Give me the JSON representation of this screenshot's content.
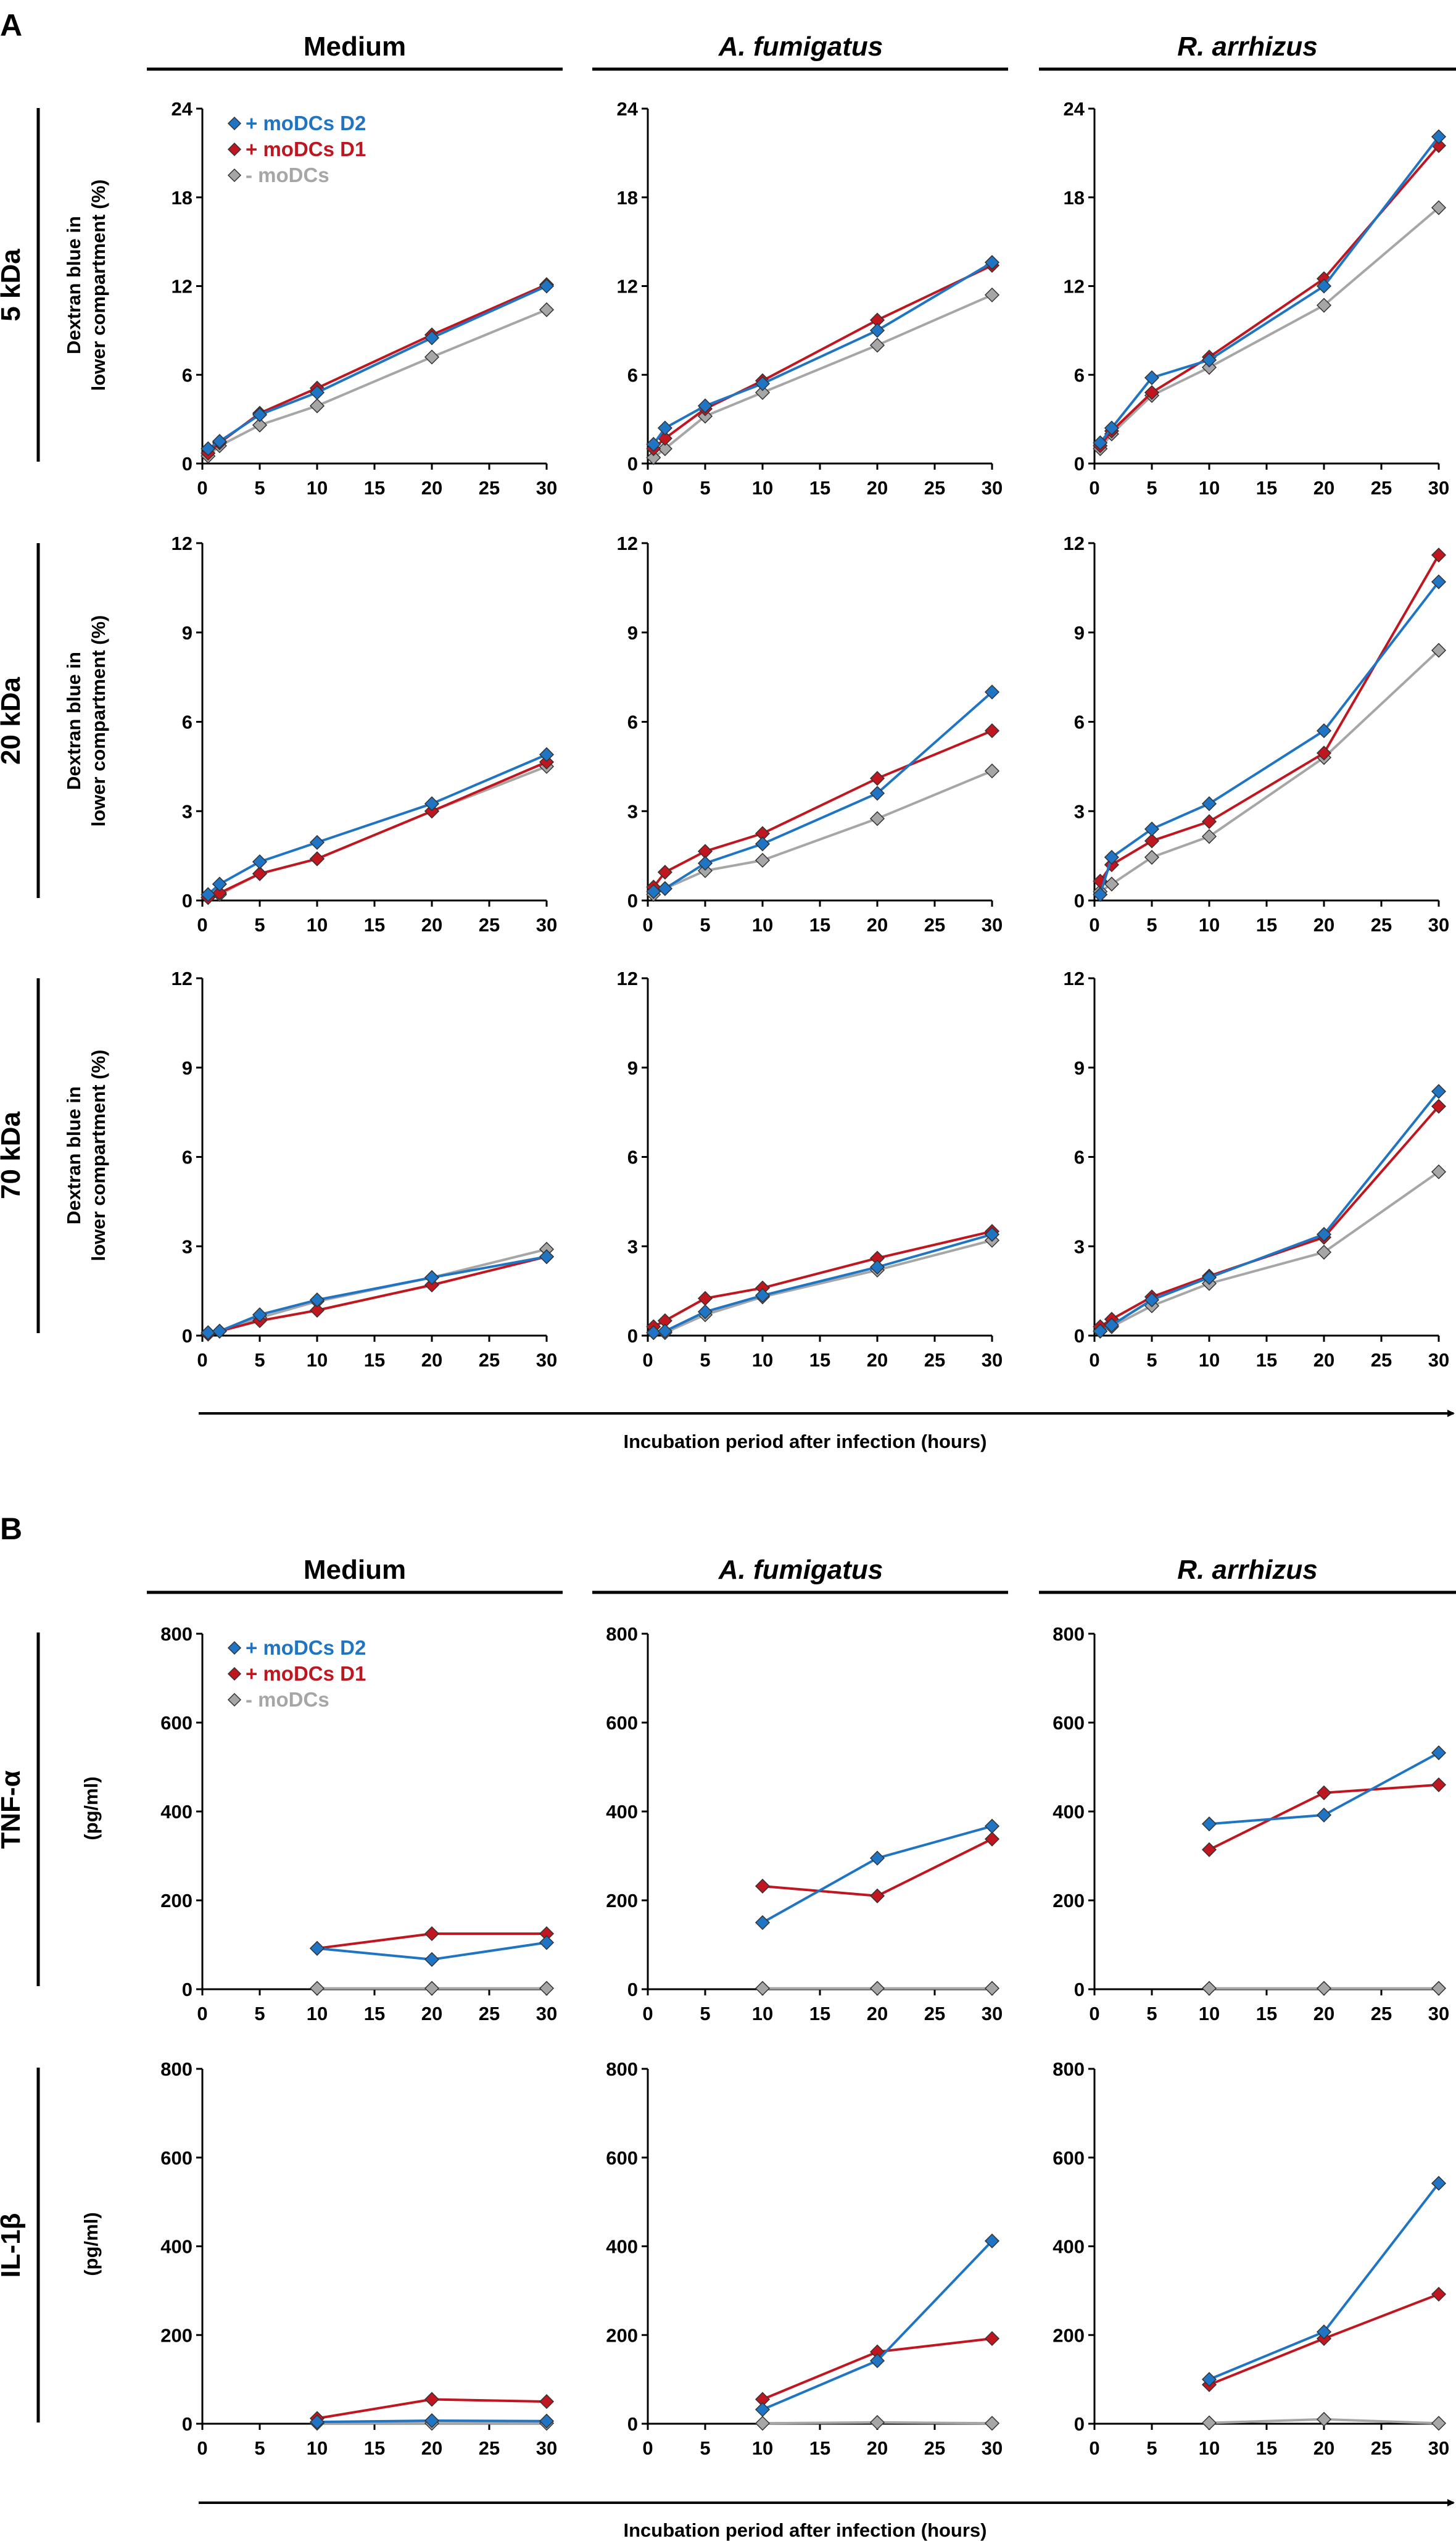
{
  "panels": {
    "A": {
      "letter": "A",
      "columns": [
        "Medium",
        "A. fumigatus",
        "R. arrhizus"
      ],
      "rows": [
        "5 kDa",
        "20 kDa",
        "70 kDa"
      ],
      "ylabel_line1": "Dextran blue in",
      "ylabel_line2": "lower compartment (%)",
      "xlabel": "Incubation period after infection (hours)"
    },
    "B": {
      "letter": "B",
      "columns": [
        "Medium",
        "A. fumigatus",
        "R. arrhizus"
      ],
      "rows": [
        "TNF-α",
        "IL-1β"
      ],
      "ylabel": "(pg/ml)",
      "xlabel": "Incubation period after infection (hours)"
    }
  },
  "legend": [
    {
      "name": "+ moDCs D2",
      "color": "#1f74c3"
    },
    {
      "name": "+ moDCs D1",
      "color": "#c0161f"
    },
    {
      "name": "- moDCs",
      "color": "#a6a6a6"
    }
  ],
  "chart_data": [
    {
      "panel": "A",
      "row": "5 kDa",
      "column": "Medium",
      "type": "line",
      "xlim": [
        0,
        30
      ],
      "ylim": [
        0,
        24
      ],
      "yticks": [
        0,
        6,
        12,
        18,
        24
      ],
      "xticks": [
        0,
        5,
        10,
        15,
        20,
        25,
        30
      ],
      "series": [
        {
          "name": "+ moDCs D2",
          "x": [
            0.5,
            1.5,
            5,
            10,
            20,
            30
          ],
          "values": [
            1.0,
            1.5,
            3.3,
            4.8,
            8.5,
            12.0
          ]
        },
        {
          "name": "+ moDCs D1",
          "x": [
            0.5,
            1.5,
            5,
            10,
            20,
            30
          ],
          "values": [
            0.7,
            1.4,
            3.4,
            5.1,
            8.7,
            12.1
          ]
        },
        {
          "name": "- moDCs",
          "x": [
            0.5,
            1.5,
            5,
            10,
            20,
            30
          ],
          "values": [
            0.5,
            1.2,
            2.6,
            3.9,
            7.2,
            10.4
          ]
        }
      ]
    },
    {
      "panel": "A",
      "row": "5 kDa",
      "column": "A. fumigatus",
      "type": "line",
      "xlim": [
        0,
        30
      ],
      "ylim": [
        0,
        24
      ],
      "yticks": [
        0,
        6,
        12,
        18,
        24
      ],
      "xticks": [
        0,
        5,
        10,
        15,
        20,
        25,
        30
      ],
      "series": [
        {
          "name": "+ moDCs D2",
          "x": [
            0.5,
            1.5,
            5,
            10,
            20,
            30
          ],
          "values": [
            1.3,
            2.4,
            3.9,
            5.4,
            9.0,
            13.6
          ]
        },
        {
          "name": "+ moDCs D1",
          "x": [
            0.5,
            1.5,
            5,
            10,
            20,
            30
          ],
          "values": [
            1.0,
            1.7,
            3.7,
            5.6,
            9.7,
            13.4
          ]
        },
        {
          "name": "- moDCs",
          "x": [
            0.5,
            1.5,
            5,
            10,
            20,
            30
          ],
          "values": [
            0.4,
            1.0,
            3.2,
            4.8,
            8.0,
            11.4
          ]
        }
      ]
    },
    {
      "panel": "A",
      "row": "5 kDa",
      "column": "R. arrhizus",
      "type": "line",
      "xlim": [
        0,
        30
      ],
      "ylim": [
        0,
        24
      ],
      "yticks": [
        0,
        6,
        12,
        18,
        24
      ],
      "xticks": [
        0,
        5,
        10,
        15,
        20,
        25,
        30
      ],
      "series": [
        {
          "name": "+ moDCs D2",
          "x": [
            0.5,
            1.5,
            5,
            10,
            20,
            30
          ],
          "values": [
            1.4,
            2.4,
            5.8,
            7.0,
            12.0,
            22.1
          ]
        },
        {
          "name": "+ moDCs D1",
          "x": [
            0.5,
            1.5,
            5,
            10,
            20,
            30
          ],
          "values": [
            1.2,
            2.2,
            4.8,
            7.2,
            12.5,
            21.5
          ]
        },
        {
          "name": "- moDCs",
          "x": [
            0.5,
            1.5,
            5,
            10,
            20,
            30
          ],
          "values": [
            1.0,
            2.0,
            4.6,
            6.5,
            10.7,
            17.3
          ]
        }
      ]
    },
    {
      "panel": "A",
      "row": "20 kDa",
      "column": "Medium",
      "type": "line",
      "xlim": [
        0,
        30
      ],
      "ylim": [
        0,
        12
      ],
      "yticks": [
        0,
        3,
        6,
        9,
        12
      ],
      "xticks": [
        0,
        5,
        10,
        15,
        20,
        25,
        30
      ],
      "series": [
        {
          "name": "+ moDCs D2",
          "x": [
            0.5,
            1.5,
            5,
            10,
            20,
            30
          ],
          "values": [
            0.2,
            0.55,
            1.3,
            1.95,
            3.25,
            4.9
          ]
        },
        {
          "name": "+ moDCs D1",
          "x": [
            0.5,
            1.5,
            5,
            10,
            20,
            30
          ],
          "values": [
            0.1,
            0.25,
            0.9,
            1.4,
            3.0,
            4.65
          ]
        },
        {
          "name": "- moDCs",
          "x": [
            0.5,
            1.5,
            5,
            10,
            20,
            30
          ],
          "values": [
            0.1,
            0.2,
            0.9,
            1.4,
            3.0,
            4.5
          ]
        }
      ]
    },
    {
      "panel": "A",
      "row": "20 kDa",
      "column": "A. fumigatus",
      "type": "line",
      "xlim": [
        0,
        30
      ],
      "ylim": [
        0,
        12
      ],
      "yticks": [
        0,
        3,
        6,
        9,
        12
      ],
      "xticks": [
        0,
        5,
        10,
        15,
        20,
        25,
        30
      ],
      "series": [
        {
          "name": "+ moDCs D2",
          "x": [
            0.5,
            1.5,
            5,
            10,
            20,
            30
          ],
          "values": [
            0.3,
            0.4,
            1.25,
            1.9,
            3.6,
            7.0
          ]
        },
        {
          "name": "+ moDCs D1",
          "x": [
            0.5,
            1.5,
            5,
            10,
            20,
            30
          ],
          "values": [
            0.45,
            0.95,
            1.65,
            2.25,
            4.1,
            5.7
          ]
        },
        {
          "name": "- moDCs",
          "x": [
            0.5,
            1.5,
            5,
            10,
            20,
            30
          ],
          "values": [
            0.2,
            0.4,
            1.0,
            1.35,
            2.75,
            4.35
          ]
        }
      ]
    },
    {
      "panel": "A",
      "row": "20 kDa",
      "column": "R. arrhizus",
      "type": "line",
      "xlim": [
        0,
        30
      ],
      "ylim": [
        0,
        12
      ],
      "yticks": [
        0,
        3,
        6,
        9,
        12
      ],
      "xticks": [
        0,
        5,
        10,
        15,
        20,
        25,
        30
      ],
      "series": [
        {
          "name": "+ moDCs D2",
          "x": [
            0.5,
            1.5,
            5,
            10,
            20,
            30
          ],
          "values": [
            0.2,
            1.45,
            2.4,
            3.25,
            5.7,
            10.7
          ]
        },
        {
          "name": "+ moDCs D1",
          "x": [
            0.5,
            1.5,
            5,
            10,
            20,
            30
          ],
          "values": [
            0.65,
            1.2,
            2.0,
            2.65,
            4.95,
            11.6
          ]
        },
        {
          "name": "- moDCs",
          "x": [
            0.5,
            1.5,
            5,
            10,
            20,
            30
          ],
          "values": [
            0.3,
            0.55,
            1.45,
            2.15,
            4.8,
            8.4
          ]
        }
      ]
    },
    {
      "panel": "A",
      "row": "70 kDa",
      "column": "Medium",
      "type": "line",
      "xlim": [
        0,
        30
      ],
      "ylim": [
        0,
        12
      ],
      "yticks": [
        0,
        3,
        6,
        9,
        12
      ],
      "xticks": [
        0,
        5,
        10,
        15,
        20,
        25,
        30
      ],
      "series": [
        {
          "name": "+ moDCs D2",
          "x": [
            0.5,
            1.5,
            5,
            10,
            20,
            30
          ],
          "values": [
            0.1,
            0.15,
            0.7,
            1.2,
            1.95,
            2.65
          ]
        },
        {
          "name": "+ moDCs D1",
          "x": [
            0.5,
            1.5,
            5,
            10,
            20,
            30
          ],
          "values": [
            0.05,
            0.15,
            0.5,
            0.85,
            1.7,
            2.65
          ]
        },
        {
          "name": "- moDCs",
          "x": [
            0.5,
            1.5,
            5,
            10,
            20,
            30
          ],
          "values": [
            0.05,
            0.15,
            0.6,
            1.15,
            1.95,
            2.9
          ]
        }
      ]
    },
    {
      "panel": "A",
      "row": "70 kDa",
      "column": "A. fumigatus",
      "type": "line",
      "xlim": [
        0,
        30
      ],
      "ylim": [
        0,
        12
      ],
      "yticks": [
        0,
        3,
        6,
        9,
        12
      ],
      "xticks": [
        0,
        5,
        10,
        15,
        20,
        25,
        30
      ],
      "series": [
        {
          "name": "+ moDCs D2",
          "x": [
            0.5,
            1.5,
            5,
            10,
            20,
            30
          ],
          "values": [
            0.1,
            0.15,
            0.8,
            1.35,
            2.3,
            3.4
          ]
        },
        {
          "name": "+ moDCs D1",
          "x": [
            0.5,
            1.5,
            5,
            10,
            20,
            30
          ],
          "values": [
            0.3,
            0.5,
            1.25,
            1.6,
            2.6,
            3.5
          ]
        },
        {
          "name": "- moDCs",
          "x": [
            0.5,
            1.5,
            5,
            10,
            20,
            30
          ],
          "values": [
            0.1,
            0.1,
            0.7,
            1.3,
            2.2,
            3.2
          ]
        }
      ]
    },
    {
      "panel": "A",
      "row": "70 kDa",
      "column": "R. arrhizus",
      "type": "line",
      "xlim": [
        0,
        30
      ],
      "ylim": [
        0,
        12
      ],
      "yticks": [
        0,
        3,
        6,
        9,
        12
      ],
      "xticks": [
        0,
        5,
        10,
        15,
        20,
        25,
        30
      ],
      "series": [
        {
          "name": "+ moDCs D2",
          "x": [
            0.5,
            1.5,
            5,
            10,
            20,
            30
          ],
          "values": [
            0.15,
            0.35,
            1.2,
            1.95,
            3.4,
            8.2
          ]
        },
        {
          "name": "+ moDCs D1",
          "x": [
            0.5,
            1.5,
            5,
            10,
            20,
            30
          ],
          "values": [
            0.3,
            0.55,
            1.3,
            2.0,
            3.3,
            7.7
          ]
        },
        {
          "name": "- moDCs",
          "x": [
            0.5,
            1.5,
            5,
            10,
            20,
            30
          ],
          "values": [
            0.15,
            0.3,
            1.0,
            1.75,
            2.8,
            5.5
          ]
        }
      ]
    },
    {
      "panel": "B",
      "row": "TNF-α",
      "column": "Medium",
      "type": "line",
      "xlim": [
        0,
        30
      ],
      "ylim": [
        0,
        800
      ],
      "yticks": [
        0,
        200,
        400,
        600,
        800
      ],
      "xticks": [
        0,
        5,
        10,
        15,
        20,
        25,
        30
      ],
      "series": [
        {
          "name": "+ moDCs D2",
          "x": [
            10,
            20,
            30
          ],
          "values": [
            92,
            67,
            105
          ]
        },
        {
          "name": "+ moDCs D1",
          "x": [
            10,
            20,
            30
          ],
          "values": [
            92,
            125,
            125
          ]
        },
        {
          "name": "- moDCs",
          "x": [
            10,
            20,
            30
          ],
          "values": [
            2,
            2,
            2
          ]
        }
      ]
    },
    {
      "panel": "B",
      "row": "TNF-α",
      "column": "A. fumigatus",
      "type": "line",
      "xlim": [
        0,
        30
      ],
      "ylim": [
        0,
        800
      ],
      "yticks": [
        0,
        200,
        400,
        600,
        800
      ],
      "xticks": [
        0,
        5,
        10,
        15,
        20,
        25,
        30
      ],
      "series": [
        {
          "name": "+ moDCs D2",
          "x": [
            10,
            20,
            30
          ],
          "values": [
            150,
            295,
            367
          ]
        },
        {
          "name": "+ moDCs D1",
          "x": [
            10,
            20,
            30
          ],
          "values": [
            232,
            210,
            338
          ]
        },
        {
          "name": "- moDCs",
          "x": [
            10,
            20,
            30
          ],
          "values": [
            2,
            2,
            2
          ]
        }
      ]
    },
    {
      "panel": "B",
      "row": "TNF-α",
      "column": "R. arrhizus",
      "type": "line",
      "xlim": [
        0,
        30
      ],
      "ylim": [
        0,
        800
      ],
      "yticks": [
        0,
        200,
        400,
        600,
        800
      ],
      "xticks": [
        0,
        5,
        10,
        15,
        20,
        25,
        30
      ],
      "series": [
        {
          "name": "+ moDCs D2",
          "x": [
            10,
            20,
            30
          ],
          "values": [
            372,
            392,
            532
          ]
        },
        {
          "name": "+ moDCs D1",
          "x": [
            10,
            20,
            30
          ],
          "values": [
            314,
            442,
            460
          ]
        },
        {
          "name": "- moDCs",
          "x": [
            10,
            20,
            30
          ],
          "values": [
            2,
            2,
            2
          ]
        }
      ]
    },
    {
      "panel": "B",
      "row": "IL-1β",
      "column": "Medium",
      "type": "line",
      "xlim": [
        0,
        30
      ],
      "ylim": [
        0,
        800
      ],
      "yticks": [
        0,
        200,
        400,
        600,
        800
      ],
      "xticks": [
        0,
        5,
        10,
        15,
        20,
        25,
        30
      ],
      "series": [
        {
          "name": "+ moDCs D2",
          "x": [
            10,
            20,
            30
          ],
          "values": [
            4,
            7,
            6
          ]
        },
        {
          "name": "+ moDCs D1",
          "x": [
            10,
            20,
            30
          ],
          "values": [
            12,
            55,
            50
          ]
        },
        {
          "name": "- moDCs",
          "x": [
            10,
            20,
            30
          ],
          "values": [
            1,
            1,
            1
          ]
        }
      ]
    },
    {
      "panel": "B",
      "row": "IL-1β",
      "column": "A. fumigatus",
      "type": "line",
      "xlim": [
        0,
        30
      ],
      "ylim": [
        0,
        800
      ],
      "yticks": [
        0,
        200,
        400,
        600,
        800
      ],
      "xticks": [
        0,
        5,
        10,
        15,
        20,
        25,
        30
      ],
      "series": [
        {
          "name": "+ moDCs D2",
          "x": [
            10,
            20,
            30
          ],
          "values": [
            32,
            142,
            412
          ]
        },
        {
          "name": "+ moDCs D1",
          "x": [
            10,
            20,
            30
          ],
          "values": [
            55,
            162,
            192
          ]
        },
        {
          "name": "- moDCs",
          "x": [
            10,
            20,
            30
          ],
          "values": [
            1,
            3,
            1
          ]
        }
      ]
    },
    {
      "panel": "B",
      "row": "IL-1β",
      "column": "R. arrhizus",
      "type": "line",
      "xlim": [
        0,
        30
      ],
      "ylim": [
        0,
        800
      ],
      "yticks": [
        0,
        200,
        400,
        600,
        800
      ],
      "xticks": [
        0,
        5,
        10,
        15,
        20,
        25,
        30
      ],
      "series": [
        {
          "name": "+ moDCs D2",
          "x": [
            10,
            20,
            30
          ],
          "values": [
            100,
            207,
            542
          ]
        },
        {
          "name": "+ moDCs D1",
          "x": [
            10,
            20,
            30
          ],
          "values": [
            88,
            192,
            292
          ]
        },
        {
          "name": "- moDCs",
          "x": [
            10,
            20,
            30
          ],
          "values": [
            2,
            10,
            1
          ]
        }
      ]
    }
  ]
}
